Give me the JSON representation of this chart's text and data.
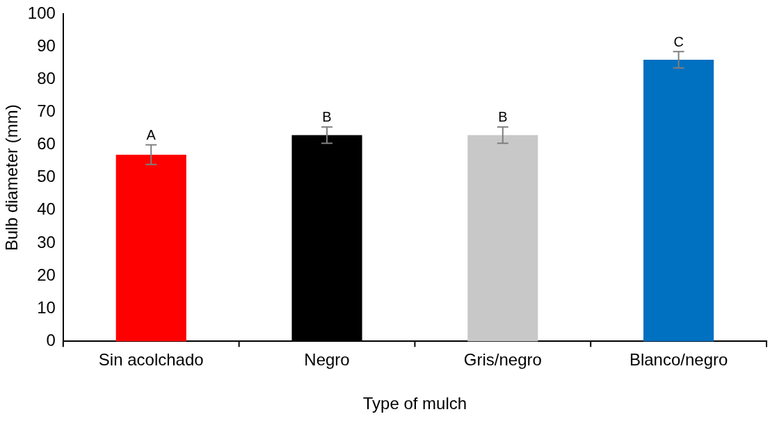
{
  "chart_data": {
    "type": "bar",
    "xlabel": "Type of mulch",
    "ylabel": "Bulb diameter (mm)",
    "categories": [
      "Sin acolchado",
      "Negro",
      "Gris/negro",
      "Blanco/negro"
    ],
    "values": [
      57,
      63,
      63,
      86
    ],
    "errors": [
      3,
      2.5,
      2.5,
      2.5
    ],
    "colors": [
      "#ff0000",
      "#000000",
      "#c8c8c8",
      "#0070c0"
    ],
    "ylim": [
      0,
      100
    ],
    "yticks": [
      0,
      10,
      20,
      30,
      40,
      50,
      60,
      70,
      80,
      90,
      100
    ],
    "grid": false,
    "legend": false,
    "annotations": [
      {
        "text": "A",
        "x": "Sin acolchado",
        "y": 60
      },
      {
        "text": "B",
        "x": "Negro",
        "y": 65.5
      },
      {
        "text": "B",
        "x": "Gris/negro",
        "y": 65.5
      },
      {
        "text": "C",
        "x": "Blanco/negro",
        "y": 88.5
      }
    ]
  }
}
